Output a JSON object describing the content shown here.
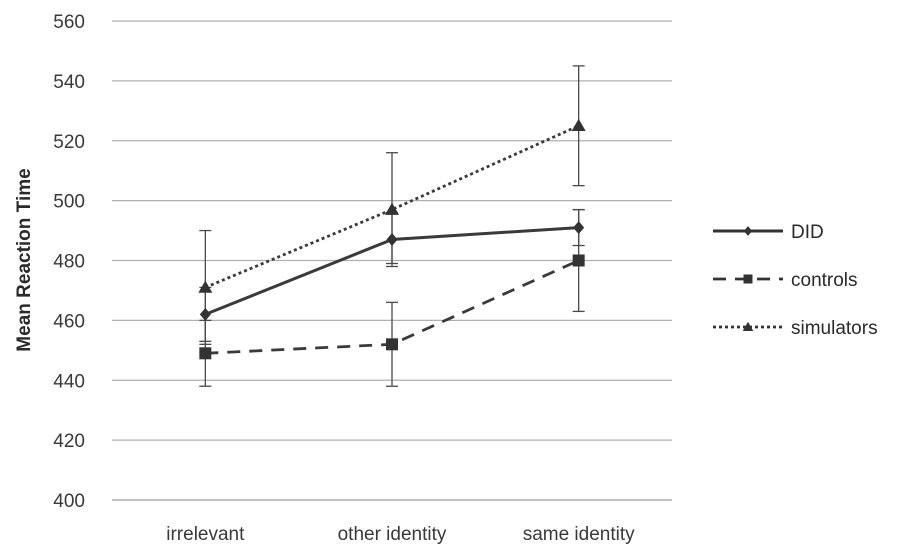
{
  "chart_data": {
    "type": "line",
    "ylabel": "Mean Reaction Time",
    "ylim": [
      400,
      560
    ],
    "yticks": [
      400,
      420,
      440,
      460,
      480,
      500,
      520,
      540,
      560
    ],
    "categories": [
      "irrelevant",
      "other identity",
      "same identity"
    ],
    "grid": true,
    "legend_position": "right",
    "series": [
      {
        "name": "DID",
        "values": [
          462,
          487,
          491
        ],
        "error_low": [
          453,
          478,
          485
        ],
        "error_high": [
          471,
          496,
          497
        ],
        "line_style": "solid",
        "marker": "diamond",
        "color": "#3a3a3a"
      },
      {
        "name": "controls",
        "values": [
          449,
          452,
          480
        ],
        "error_low": [
          438,
          438,
          463
        ],
        "error_high": [
          460,
          466,
          497
        ],
        "line_style": "dashed",
        "marker": "square",
        "color": "#3a3a3a"
      },
      {
        "name": "simulators",
        "values": [
          471,
          497,
          525
        ],
        "error_low": [
          452,
          479,
          505
        ],
        "error_high": [
          490,
          516,
          545
        ],
        "line_style": "dotted",
        "marker": "triangle",
        "color": "#3a3a3a"
      }
    ]
  }
}
